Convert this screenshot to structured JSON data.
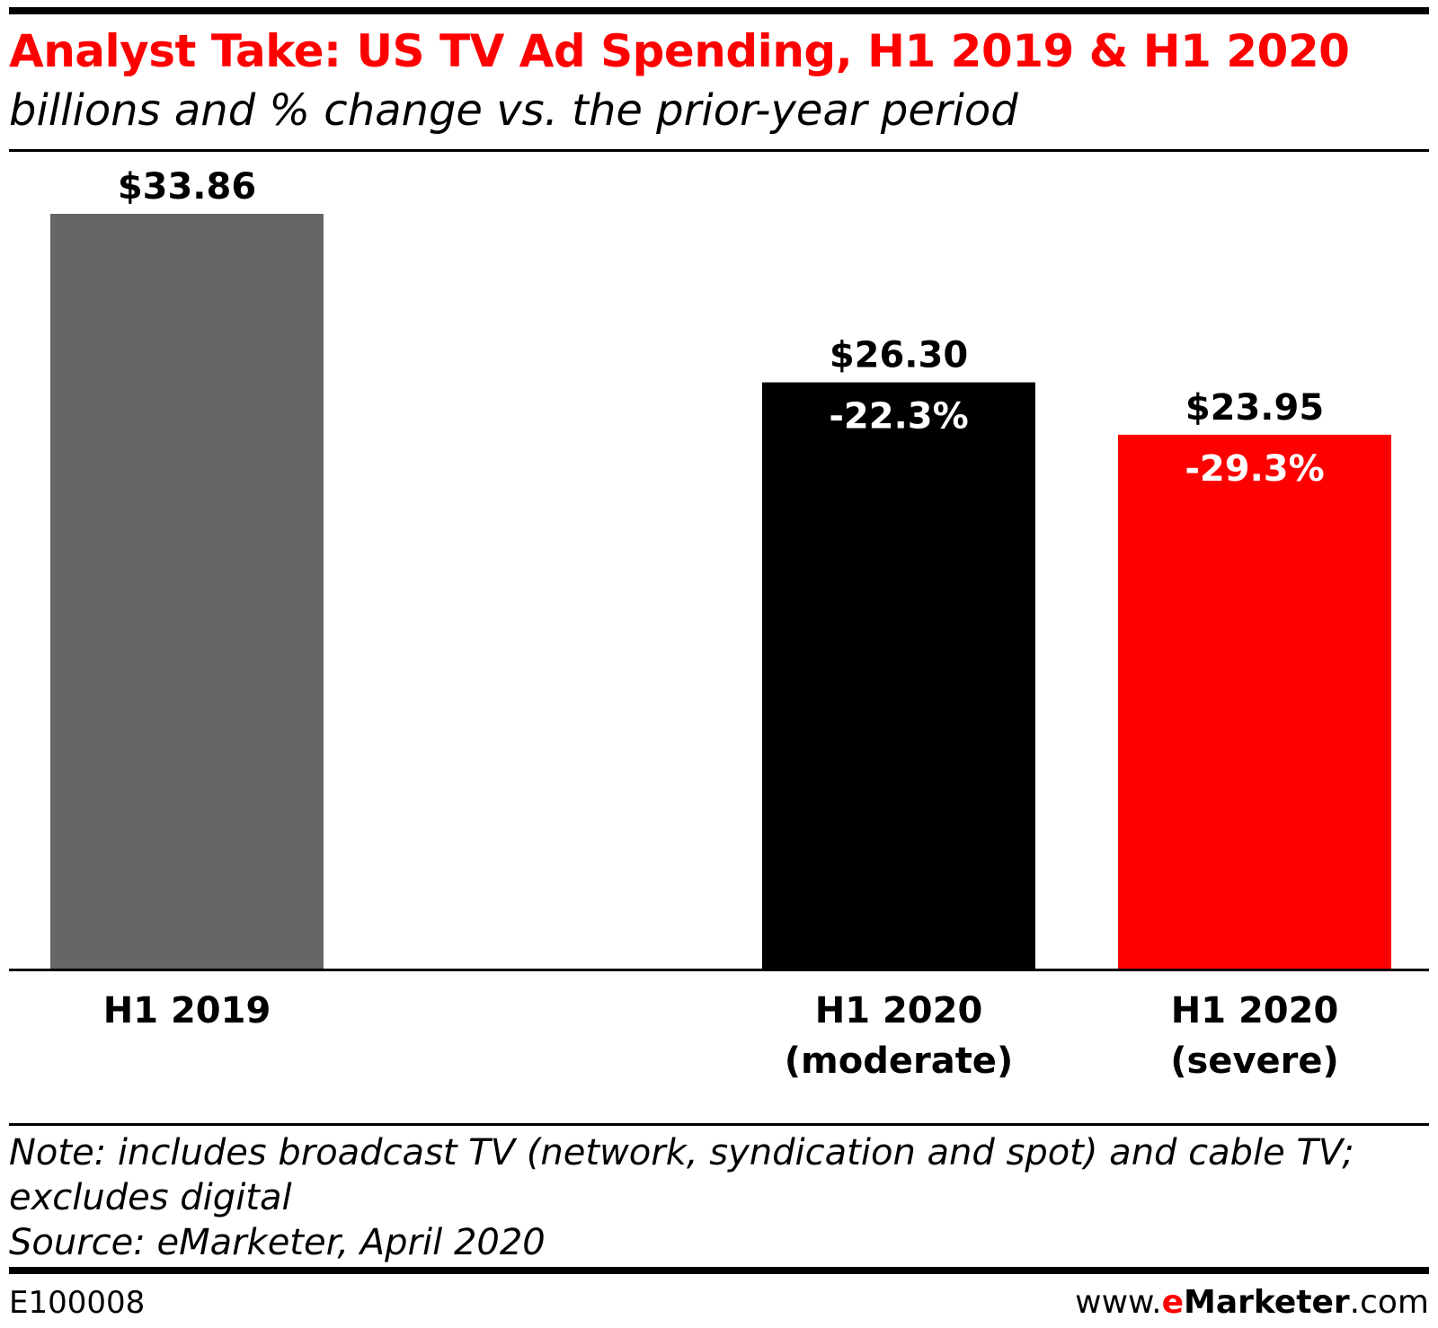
{
  "header": {
    "title": "Analyst Take: US TV Ad Spending, H1 2019 & H1 2020",
    "subtitle": "billions and % change vs. the prior-year period"
  },
  "chart_data": {
    "type": "bar",
    "title": "Analyst Take: US TV Ad Spending, H1 2019 & H1 2020",
    "subtitle": "billions and % change vs. the prior-year period",
    "xlabel": "",
    "ylabel": "",
    "categories": [
      {
        "line1": "H1 2019",
        "line2": ""
      },
      {
        "line1": "H1 2020",
        "line2": "(moderate)"
      },
      {
        "line1": "H1 2020",
        "line2": "(severe)"
      }
    ],
    "values": [
      33.86,
      26.3,
      23.95
    ],
    "value_labels": [
      "$33.86",
      "$26.30",
      "$23.95"
    ],
    "change_labels": [
      "",
      "-22.3%",
      "-29.3%"
    ],
    "colors": [
      "#666666",
      "#000000",
      "#ff0000"
    ],
    "ylim": [
      0,
      33.86
    ],
    "grid": false,
    "legend": "none"
  },
  "notes": {
    "note_line1": "Note: includes broadcast TV (network, syndication and spot) and cable TV;",
    "note_line2": "excludes digital",
    "source": "Source: eMarketer, April 2020"
  },
  "footer": {
    "id": "E100008",
    "site_prefix": "www.",
    "site_e": "e",
    "site_brand": "Marketer",
    "site_suffix": ".com"
  }
}
